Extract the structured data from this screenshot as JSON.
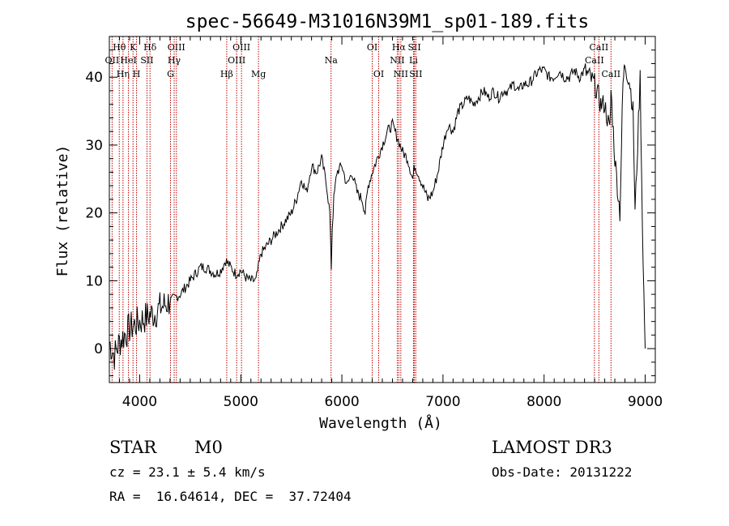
{
  "chart_data": {
    "type": "line",
    "title": "spec-56649-M31016N39M1_sp01-189.fits",
    "xlabel": "Wavelength (Å)",
    "ylabel": "Flux (relative)",
    "xlim": [
      3700,
      9100
    ],
    "ylim": [
      -5,
      46
    ],
    "xticks": [
      4000,
      5000,
      6000,
      7000,
      8000,
      9000
    ],
    "yticks": [
      0,
      10,
      20,
      30,
      40
    ],
    "grid": false,
    "series": [
      {
        "name": "spectrum",
        "x": [
          3700,
          3750,
          3800,
          3850,
          3900,
          3950,
          4000,
          4050,
          4100,
          4150,
          4200,
          4250,
          4300,
          4350,
          4400,
          4450,
          4500,
          4550,
          4600,
          4650,
          4700,
          4750,
          4800,
          4850,
          4900,
          4950,
          5000,
          5050,
          5100,
          5150,
          5200,
          5250,
          5300,
          5350,
          5400,
          5450,
          5500,
          5550,
          5600,
          5650,
          5700,
          5750,
          5800,
          5850,
          5880,
          5895,
          5905,
          5920,
          5950,
          6000,
          6050,
          6100,
          6150,
          6200,
          6230,
          6260,
          6300,
          6350,
          6400,
          6450,
          6500,
          6550,
          6600,
          6650,
          6700,
          6720,
          6750,
          6800,
          6850,
          6900,
          6950,
          7000,
          7050,
          7100,
          7150,
          7200,
          7250,
          7300,
          7350,
          7400,
          7450,
          7500,
          7550,
          7600,
          7650,
          7700,
          7750,
          7800,
          7850,
          7900,
          7950,
          8000,
          8050,
          8100,
          8150,
          8200,
          8250,
          8300,
          8350,
          8400,
          8450,
          8500,
          8540,
          8560,
          8600,
          8650,
          8662,
          8700,
          8750,
          8780,
          8800,
          8850,
          8880,
          8900,
          8950,
          8980,
          9000
        ],
        "y": [
          1,
          -1,
          1,
          2,
          3,
          3.5,
          4,
          4.5,
          5,
          5.2,
          6,
          6.5,
          7,
          7.5,
          8,
          9,
          10,
          11,
          12,
          12,
          11.5,
          11,
          11.5,
          13,
          12,
          11,
          11.5,
          10.5,
          10,
          10,
          14,
          15,
          16,
          17,
          18,
          19,
          20,
          22,
          25,
          23,
          27,
          26,
          28,
          24,
          20,
          12,
          18,
          22,
          26,
          27,
          24,
          26,
          23,
          22,
          20,
          24,
          26,
          28,
          30,
          32,
          33,
          31,
          29,
          28,
          25,
          27,
          26,
          24,
          22,
          23,
          26,
          30,
          33,
          32,
          35,
          36,
          37,
          36,
          37,
          38,
          37,
          38,
          37,
          38,
          38,
          39,
          38,
          39,
          39,
          40,
          41,
          41,
          40,
          40,
          41,
          40,
          40,
          41,
          40,
          41,
          40,
          39,
          37,
          36,
          36,
          32,
          38,
          28,
          20,
          39,
          42,
          39,
          35,
          20,
          40,
          12,
          0
        ]
      }
    ],
    "lines": [
      {
        "label": "Hθ",
        "x": 3798,
        "pos": "top-1"
      },
      {
        "label": "OII",
        "x": 3727,
        "pos": "top-2"
      },
      {
        "label": "Hη",
        "x": 3835,
        "pos": "top-3"
      },
      {
        "label": "HeI",
        "x": 3889,
        "pos": "top-2"
      },
      {
        "label": "K",
        "x": 3934,
        "pos": "top-1"
      },
      {
        "label": "H",
        "x": 3969,
        "pos": "top-3"
      },
      {
        "label": "SII",
        "x": 4072,
        "pos": "top-2"
      },
      {
        "label": "Hδ",
        "x": 4102,
        "pos": "top-1"
      },
      {
        "label": "OIII",
        "x": 4363,
        "pos": "top-1"
      },
      {
        "label": "Hγ",
        "x": 4341,
        "pos": "top-2"
      },
      {
        "label": "G",
        "x": 4305,
        "pos": "top-3"
      },
      {
        "label": "Hβ",
        "x": 4861,
        "pos": "top-3"
      },
      {
        "label": "OIII",
        "x": 4959,
        "pos": "top-2"
      },
      {
        "label": "OIII",
        "x": 5007,
        "pos": "top-1"
      },
      {
        "label": "Mg",
        "x": 5175,
        "pos": "top-3"
      },
      {
        "label": "Na",
        "x": 5893,
        "pos": "top-2"
      },
      {
        "label": "OI",
        "x": 6300,
        "pos": "top-1"
      },
      {
        "label": "OI",
        "x": 6364,
        "pos": "top-3"
      },
      {
        "label": "NII",
        "x": 6548,
        "pos": "top-2"
      },
      {
        "label": "Hα",
        "x": 6563,
        "pos": "top-1"
      },
      {
        "label": "NII",
        "x": 6583,
        "pos": "top-3"
      },
      {
        "label": "Li",
        "x": 6708,
        "pos": "top-2"
      },
      {
        "label": "SII",
        "x": 6717,
        "pos": "top-1"
      },
      {
        "label": "SII",
        "x": 6731,
        "pos": "top-3"
      },
      {
        "label": "CaII",
        "x": 8498,
        "pos": "top-2"
      },
      {
        "label": "CaII",
        "x": 8542,
        "pos": "top-1"
      },
      {
        "label": "CaII",
        "x": 8662,
        "pos": "top-3"
      }
    ]
  },
  "info": {
    "class_label": "STAR",
    "subclass": "M0",
    "survey": "LAMOST DR3",
    "cz": "cz = 23.1 ± 5.4 km/s",
    "obs_date": "Obs-Date: 20131222",
    "radec": "RA =  16.64614, DEC =  37.72404"
  },
  "colors": {
    "line_marker": "#c00000",
    "spectrum": "#000000"
  }
}
